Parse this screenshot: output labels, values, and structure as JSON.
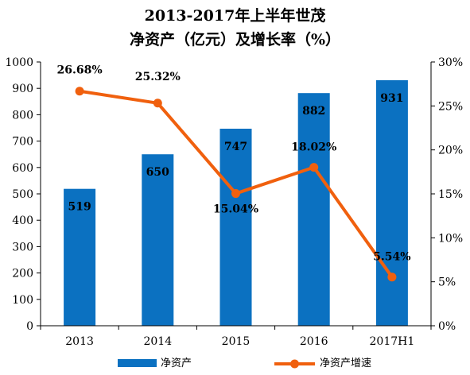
{
  "chart_data": {
    "type": "bar",
    "title": "2013-2017年上半年世茂",
    "subtitle": "净资产（亿元）及增长率（%）",
    "categories": [
      "2013",
      "2014",
      "2015",
      "2016",
      "2017H1"
    ],
    "series": [
      {
        "name": "净资产",
        "type": "bar",
        "axis": "left",
        "values": [
          519,
          650,
          747,
          882,
          931
        ],
        "labels": [
          "519",
          "650",
          "747",
          "882",
          "931"
        ]
      },
      {
        "name": "净资产增速",
        "type": "line",
        "axis": "right",
        "values": [
          26.68,
          25.32,
          15.04,
          18.02,
          5.54
        ],
        "labels": [
          "26.68%",
          "25.32%",
          "15.04%",
          "18.02%",
          "5.54%"
        ]
      }
    ],
    "y_left": {
      "ylim": [
        0,
        1000
      ],
      "ticks": [
        "0",
        "100",
        "200",
        "300",
        "400",
        "500",
        "600",
        "700",
        "800",
        "900",
        "1000"
      ]
    },
    "y_right": {
      "ylim": [
        0,
        30
      ],
      "ticks": [
        "0%",
        "5%",
        "10%",
        "15%",
        "20%",
        "25%",
        "30%"
      ]
    },
    "grid": false,
    "legend_position": "bottom",
    "colors": {
      "bar": "#0B71C1",
      "line": "#F0600E",
      "axis": "#000000"
    }
  }
}
